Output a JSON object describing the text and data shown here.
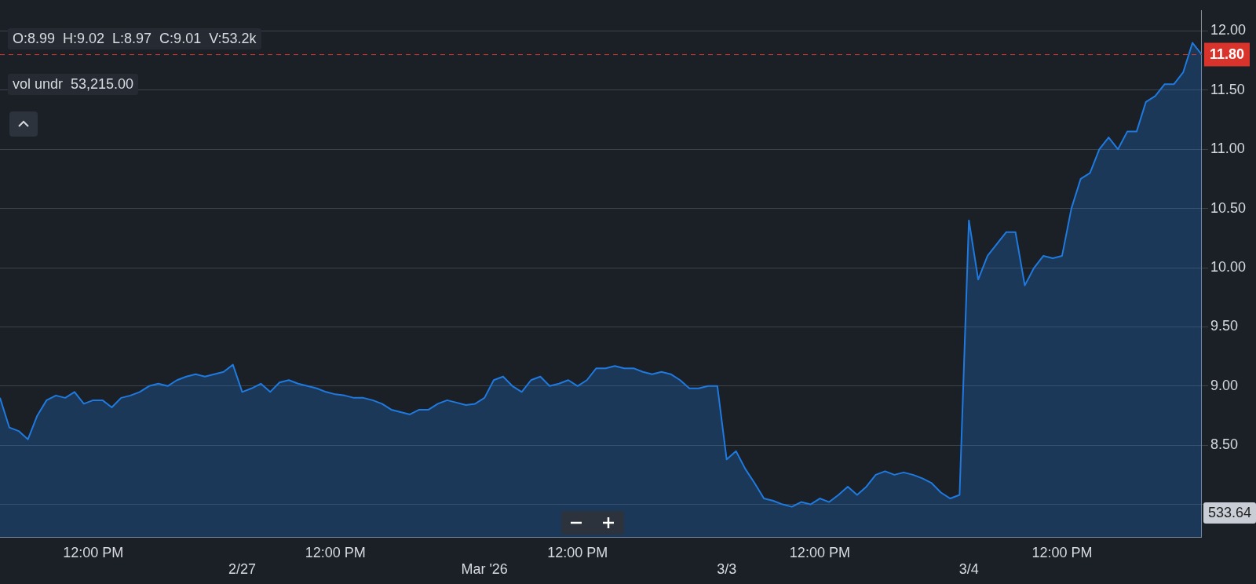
{
  "chart_data": {
    "type": "area",
    "categories": [
      null,
      null,
      null,
      null,
      null,
      null,
      null,
      null,
      null,
      null,
      "12:00 PM",
      null,
      null,
      null,
      null,
      null,
      null,
      null,
      null,
      null,
      null,
      null,
      null,
      null,
      null,
      null,
      "2/27",
      null,
      null,
      null,
      null,
      null,
      null,
      null,
      null,
      null,
      "12:00 PM",
      null,
      null,
      null,
      null,
      null,
      null,
      null,
      null,
      null,
      null,
      null,
      null,
      null,
      null,
      null,
      "Mar '26",
      null,
      null,
      null,
      null,
      null,
      null,
      null,
      null,
      null,
      "12:00 PM",
      null,
      null,
      null,
      null,
      null,
      null,
      null,
      null,
      null,
      null,
      null,
      null,
      null,
      null,
      null,
      "3/3",
      null,
      null,
      null,
      null,
      null,
      null,
      null,
      null,
      null,
      "12:00 PM",
      null,
      null,
      null,
      null,
      null,
      null,
      null,
      null,
      null,
      null,
      null,
      null,
      null,
      null,
      null,
      "3/4",
      null,
      null,
      null,
      null,
      null,
      null,
      null,
      null,
      null,
      "12:00 PM",
      null,
      null,
      null,
      null,
      null,
      null,
      null,
      null,
      null,
      null,
      null,
      null,
      null,
      null,
      null
    ],
    "series": [
      {
        "color": "#1f7ae0",
        "values": [
          8.9,
          8.65,
          8.62,
          8.55,
          8.75,
          8.88,
          8.92,
          8.9,
          8.95,
          8.85,
          8.88,
          8.88,
          8.82,
          8.9,
          8.92,
          8.95,
          9.0,
          9.02,
          9.0,
          9.05,
          9.08,
          9.1,
          9.08,
          9.1,
          9.12,
          9.18,
          8.95,
          8.98,
          9.02,
          8.95,
          9.03,
          9.05,
          9.02,
          9.0,
          8.98,
          8.95,
          8.93,
          8.92,
          8.9,
          8.9,
          8.88,
          8.85,
          8.8,
          8.78,
          8.76,
          8.8,
          8.8,
          8.85,
          8.88,
          8.86,
          8.84,
          8.85,
          8.9,
          9.05,
          9.08,
          9.0,
          8.95,
          9.05,
          9.08,
          9.0,
          9.02,
          9.05,
          9.0,
          9.05,
          9.15,
          9.15,
          9.17,
          9.15,
          9.15,
          9.12,
          9.1,
          9.12,
          9.1,
          9.05,
          8.98,
          8.98,
          9.0,
          9.0,
          8.38,
          8.45,
          8.3,
          8.18,
          8.05,
          8.03,
          8.0,
          7.98,
          8.02,
          8.0,
          8.05,
          8.02,
          8.08,
          8.15,
          8.08,
          8.15,
          8.25,
          8.28,
          8.25,
          8.27,
          8.25,
          8.22,
          8.18,
          8.1,
          8.05,
          8.08,
          10.4,
          9.9,
          10.1,
          10.2,
          10.3,
          10.3,
          9.85,
          10.0,
          10.1,
          10.08,
          10.1,
          10.5,
          10.75,
          10.8,
          11.0,
          11.1,
          11.0,
          11.15,
          11.15,
          11.4,
          11.45,
          11.55,
          11.55,
          11.65,
          11.9,
          11.8
        ]
      }
    ],
    "ylim": [
      7.72,
      12.17
    ],
    "yticks": [
      {
        "value": 8,
        "label": null
      },
      {
        "value": 8.5,
        "label": "8.50"
      },
      {
        "value": 9,
        "label": "9.00"
      },
      {
        "value": 9.5,
        "label": "9.50"
      },
      {
        "value": 10,
        "label": "10.00"
      },
      {
        "value": 10.5,
        "label": "10.50"
      },
      {
        "value": 11,
        "label": "11.00"
      },
      {
        "value": 11.5,
        "label": "11.50"
      },
      {
        "value": 12,
        "label": "12.00"
      }
    ],
    "grid": true,
    "marker": "none",
    "line_style": "solid",
    "ref_lines": [
      {
        "axis": "y",
        "value": 11.8,
        "label": "11.80",
        "color": "#d9342b",
        "line_style": "dashed"
      }
    ],
    "annotations": [
      "O:8.99  H:9.02  L:8.97  C:9.01  V:53.2k",
      "vol undr  53,215.00",
      "533.64"
    ]
  }
}
